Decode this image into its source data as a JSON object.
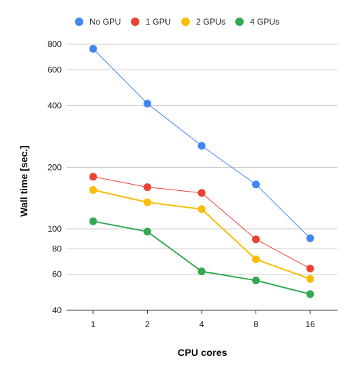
{
  "chart_data": {
    "type": "line",
    "xlabel": "CPU cores",
    "ylabel": "Wall time [sec.]",
    "categories": [
      "1",
      "2",
      "4",
      "8",
      "16"
    ],
    "y_scale": "log",
    "ylim": [
      40,
      800
    ],
    "y_ticks": [
      "800",
      "600",
      "400",
      "200",
      "100",
      "80",
      "60",
      "40"
    ],
    "grid": "horizontal",
    "legend": "top",
    "series": [
      {
        "name": "No GPU",
        "color": "#4285F4",
        "values": [
          760,
          410,
          255,
          165,
          90
        ]
      },
      {
        "name": "1 GPU",
        "color": "#EA4335",
        "values": [
          180,
          160,
          150,
          89,
          64
        ]
      },
      {
        "name": "2 GPUs",
        "color": "#FBBC04",
        "values": [
          155,
          135,
          125,
          71,
          57
        ]
      },
      {
        "name": "4 GPUs",
        "color": "#34A853",
        "values": [
          109,
          97,
          62,
          56,
          48
        ]
      }
    ]
  }
}
